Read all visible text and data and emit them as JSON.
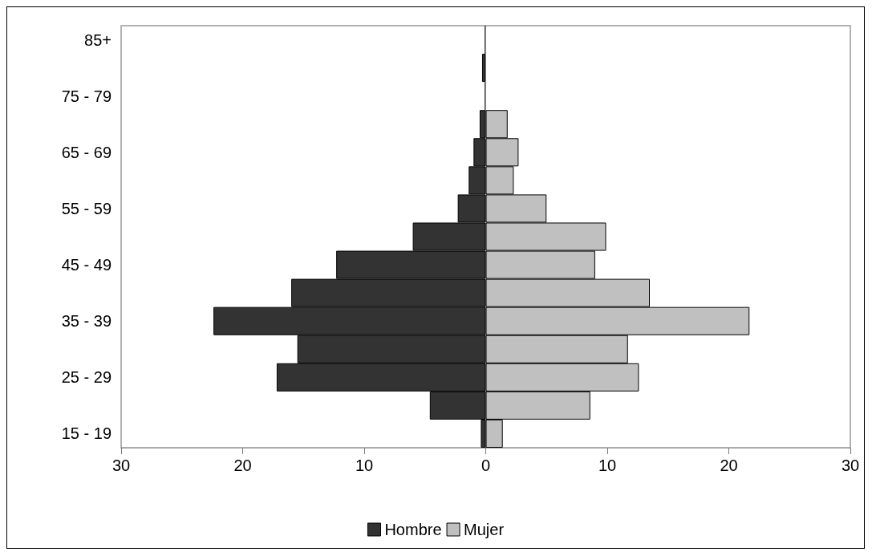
{
  "chart_data": {
    "type": "bar",
    "orientation": "horizontal",
    "stacked": true,
    "categories": [
      "85+",
      null,
      "75 - 79",
      null,
      "65 - 69",
      null,
      "55 - 59",
      null,
      "45 - 49",
      null,
      "35 - 39",
      null,
      "25 - 29",
      null,
      "15 - 19"
    ],
    "series": [
      {
        "name": "Hombre",
        "color": "#333333",
        "values": [
          -0.1,
          -0.3,
          -0.1,
          -0.5,
          -1.0,
          -1.4,
          -2.3,
          -6.0,
          -12.3,
          -16.0,
          -22.4,
          -15.5,
          -17.2,
          -4.6,
          -0.4
        ]
      },
      {
        "name": "Mujer",
        "color": "#c0c0c0",
        "values": [
          0,
          0,
          0,
          1.8,
          2.7,
          2.3,
          5.0,
          9.9,
          9.0,
          13.5,
          21.7,
          11.7,
          12.6,
          8.6,
          1.4
        ]
      }
    ],
    "xlim": [
      -30,
      30
    ],
    "xticks": [
      {
        "value": -30,
        "label": "30"
      },
      {
        "value": -20,
        "label": "20"
      },
      {
        "value": -10,
        "label": "10"
      },
      0,
      10,
      20,
      30
    ],
    "grid": false,
    "legend": "bottom"
  }
}
